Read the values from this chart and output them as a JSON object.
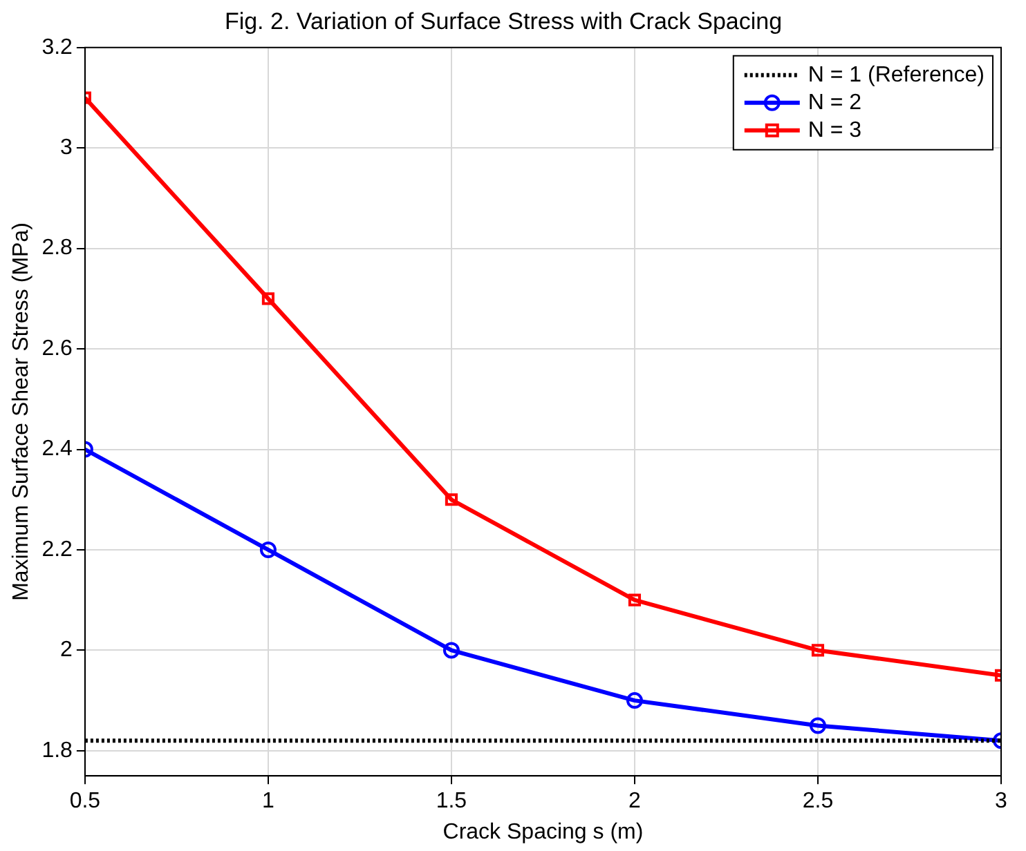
{
  "chart_data": {
    "type": "line",
    "title": "Fig. 2. Variation of Surface Stress with Crack Spacing",
    "xlabel": "Crack Spacing s (m)",
    "ylabel": "Maximum Surface Shear Stress (MPa)",
    "x": [
      0.5,
      1,
      1.5,
      2,
      2.5,
      3
    ],
    "series": [
      {
        "name": "N = 1 (Reference)",
        "color": "#000000",
        "x": [
          0.5,
          3
        ],
        "values": [
          1.82,
          1.82
        ],
        "marker": "none",
        "line_style": "dotted"
      },
      {
        "name": "N = 2",
        "color": "#0000ff",
        "values": [
          2.4,
          2.2,
          2.0,
          1.9,
          1.85,
          1.82
        ],
        "marker": "circle",
        "line_style": "solid"
      },
      {
        "name": "N = 3",
        "color": "#ff0000",
        "values": [
          3.1,
          2.7,
          2.3,
          2.1,
          2.0,
          1.95
        ],
        "marker": "square",
        "line_style": "solid"
      }
    ],
    "xlim": [
      0.5,
      3
    ],
    "xticks": [
      0.5,
      1,
      1.5,
      2,
      2.5,
      3
    ],
    "ylim": [
      1.75,
      3.2
    ],
    "yticks": [
      1.8,
      2,
      2.2,
      2.4,
      2.6,
      2.8,
      3,
      3.2
    ],
    "grid": true,
    "legend": "top right"
  }
}
